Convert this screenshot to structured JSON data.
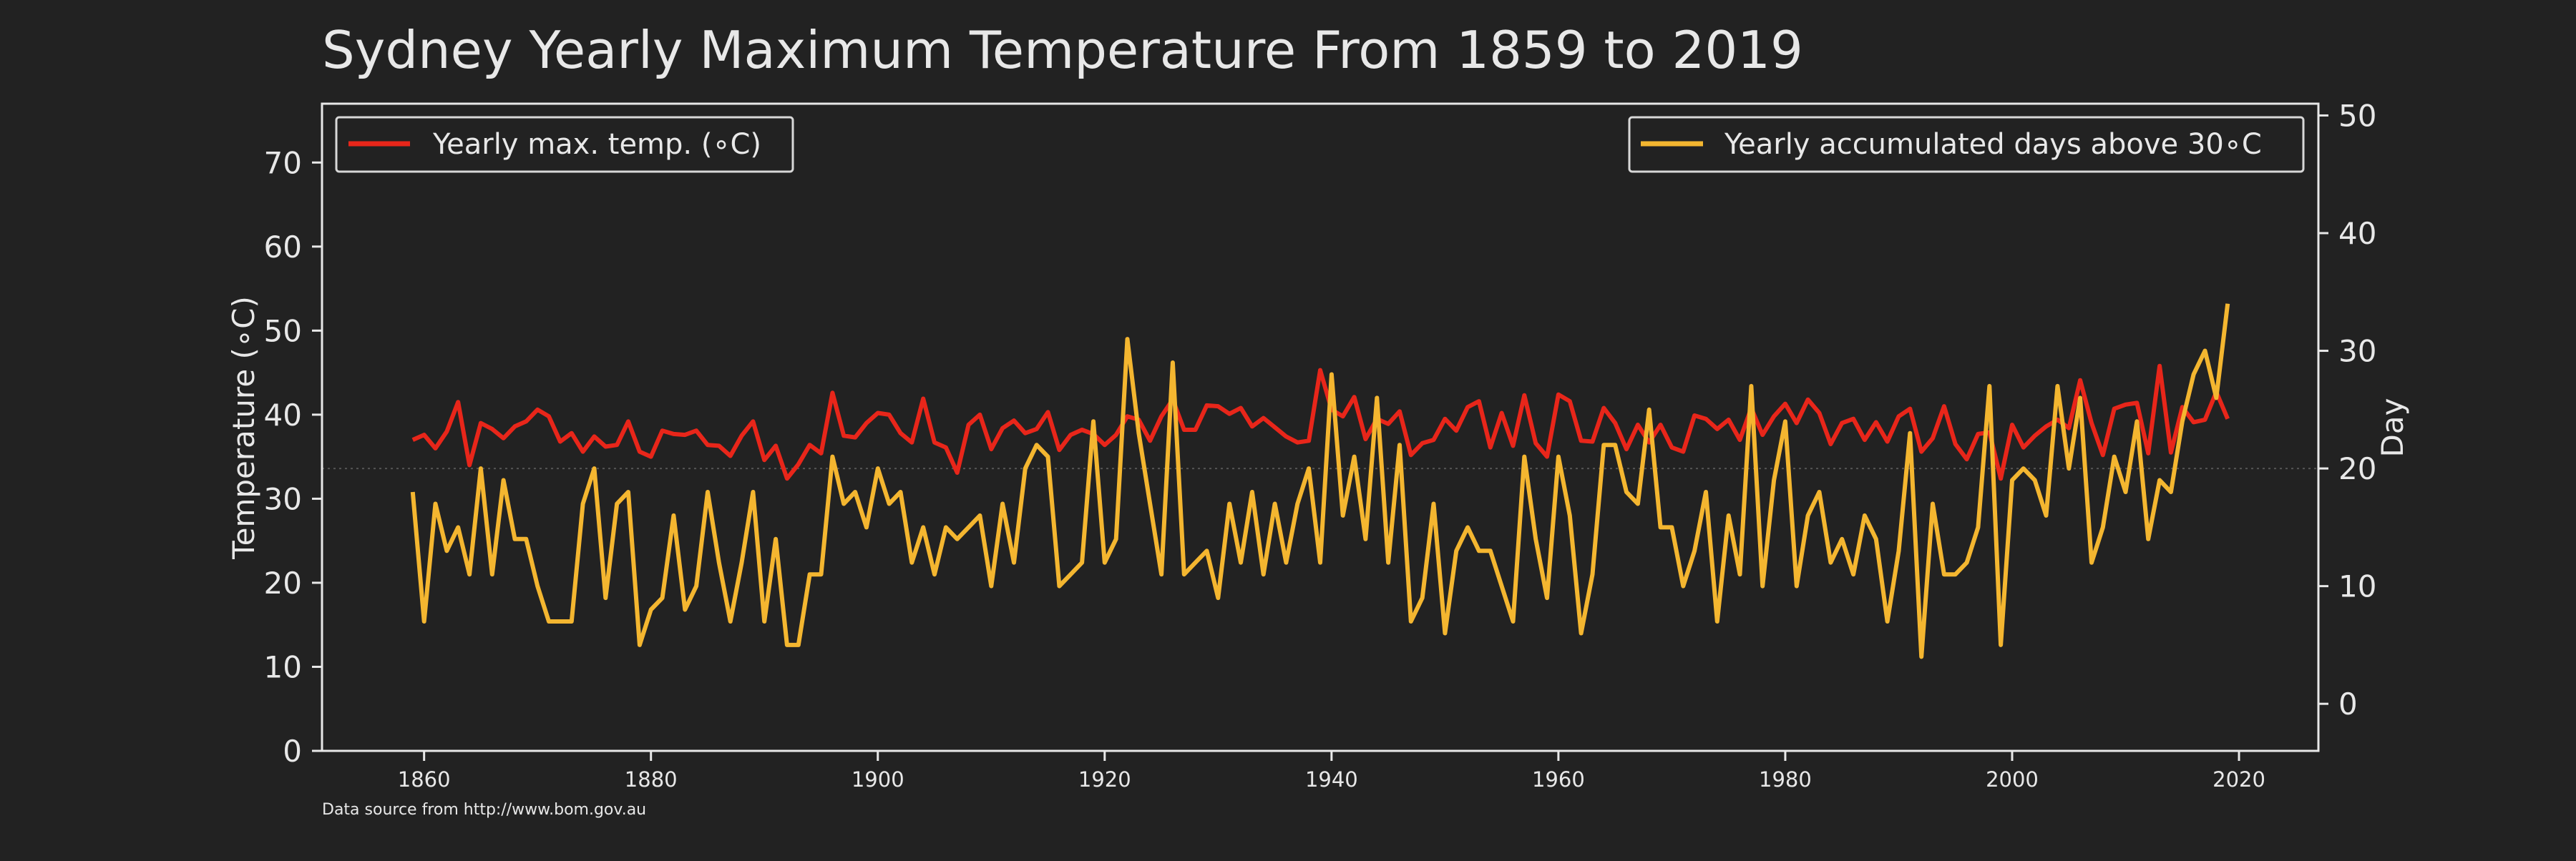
{
  "chart_data": {
    "type": "line",
    "title": "Sydney Yearly Maximum Temperature From 1859 to 2019",
    "xlabel": "",
    "ylabel_left": "Temperature (∘C)",
    "ylabel_right": "Day",
    "source_note": "Data source from http://www.bom.gov.au",
    "xlim": [
      1851,
      2027
    ],
    "ylim_left": [
      0,
      77
    ],
    "ylim_right": [
      -4,
      51
    ],
    "x_ticks": [
      1860,
      1880,
      1900,
      1920,
      1940,
      1960,
      1980,
      2000,
      2020
    ],
    "y_ticks_left": [
      0,
      10,
      20,
      30,
      40,
      50,
      60,
      70
    ],
    "y_ticks_right": [
      0,
      10,
      20,
      30,
      40,
      50
    ],
    "legend_left": "top-left",
    "legend_right": "top-right",
    "grid": false,
    "reference_line_right": 20,
    "colors": {
      "background": "#222222",
      "temperature": "#e8261a",
      "days": "#f4b630",
      "axis": "#e8e8e8",
      "reference": "#555555"
    },
    "series": [
      {
        "name": "Yearly max. temp. (∘C)",
        "axis": "left",
        "x": [
          1859,
          1860,
          1861,
          1862,
          1863,
          1864,
          1865,
          1866,
          1867,
          1868,
          1869,
          1870,
          1871,
          1872,
          1873,
          1874,
          1875,
          1876,
          1877,
          1878,
          1879,
          1880,
          1881,
          1882,
          1883,
          1884,
          1885,
          1886,
          1887,
          1888,
          1889,
          1890,
          1891,
          1892,
          1893,
          1894,
          1895,
          1896,
          1897,
          1898,
          1899,
          1900,
          1901,
          1902,
          1903,
          1904,
          1905,
          1906,
          1907,
          1908,
          1909,
          1910,
          1911,
          1912,
          1913,
          1914,
          1915,
          1916,
          1917,
          1918,
          1919,
          1920,
          1921,
          1922,
          1923,
          1924,
          1925,
          1926,
          1927,
          1928,
          1929,
          1930,
          1931,
          1932,
          1933,
          1934,
          1935,
          1936,
          1937,
          1938,
          1939,
          1940,
          1941,
          1942,
          1943,
          1944,
          1945,
          1946,
          1947,
          1948,
          1949,
          1950,
          1951,
          1952,
          1953,
          1954,
          1955,
          1956,
          1957,
          1958,
          1959,
          1960,
          1961,
          1962,
          1963,
          1964,
          1965,
          1966,
          1967,
          1968,
          1969,
          1970,
          1971,
          1972,
          1973,
          1974,
          1975,
          1976,
          1977,
          1978,
          1979,
          1980,
          1981,
          1982,
          1983,
          1984,
          1985,
          1986,
          1987,
          1988,
          1989,
          1990,
          1991,
          1992,
          1993,
          1994,
          1995,
          1996,
          1997,
          1998,
          1999,
          2000,
          2001,
          2002,
          2003,
          2004,
          2005,
          2006,
          2007,
          2008,
          2009,
          2010,
          2011,
          2012,
          2013,
          2014,
          2015,
          2016,
          2017,
          2018,
          2019
        ],
        "values": [
          37.0,
          37.6,
          36.0,
          38.0,
          41.5,
          34.0,
          39.0,
          38.3,
          37.2,
          38.6,
          39.2,
          40.6,
          39.8,
          36.8,
          37.8,
          35.6,
          37.4,
          36.2,
          36.4,
          39.2,
          35.6,
          35.0,
          38.1,
          37.7,
          37.6,
          38.1,
          36.4,
          36.3,
          35.1,
          37.5,
          39.2,
          34.6,
          36.3,
          32.4,
          34.1,
          36.4,
          35.4,
          42.6,
          37.5,
          37.3,
          39.0,
          40.2,
          40.0,
          37.8,
          36.7,
          41.9,
          36.7,
          36.1,
          33.1,
          38.8,
          40.0,
          35.9,
          38.4,
          39.3,
          37.8,
          38.3,
          40.3,
          35.8,
          37.6,
          38.2,
          37.7,
          36.4,
          37.6,
          39.8,
          39.4,
          36.9,
          39.8,
          41.8,
          38.2,
          38.2,
          41.1,
          41.0,
          40.1,
          40.8,
          38.6,
          39.6,
          38.5,
          37.4,
          36.7,
          36.9,
          45.3,
          40.6,
          39.8,
          42.1,
          37.1,
          39.5,
          38.9,
          40.4,
          35.2,
          36.6,
          37.0,
          39.5,
          38.1,
          40.9,
          41.6,
          36.1,
          40.2,
          36.3,
          42.3,
          36.6,
          35.0,
          42.4,
          41.6,
          36.9,
          36.8,
          40.8,
          39.0,
          35.9,
          38.8,
          36.7,
          38.8,
          36.1,
          35.6,
          39.9,
          39.5,
          38.3,
          39.4,
          37.0,
          40.8,
          37.6,
          39.8,
          41.3,
          39.0,
          41.8,
          40.2,
          36.5,
          39.0,
          39.5,
          37.0,
          39.1,
          36.8,
          39.8,
          40.7,
          35.6,
          37.2,
          41.0,
          36.5,
          34.7,
          37.7,
          37.9,
          32.4,
          38.8,
          36.1,
          37.5,
          38.6,
          39.4,
          38.4,
          44.1,
          39.0,
          35.2,
          40.7,
          41.2,
          41.4,
          35.4,
          45.8,
          35.5,
          40.9,
          39.1,
          39.4,
          42.7,
          39.5
        ]
      },
      {
        "name": "Yearly accumulated days above 30∘C",
        "axis": "right",
        "x": [
          1859,
          1860,
          1861,
          1862,
          1863,
          1864,
          1865,
          1866,
          1867,
          1868,
          1869,
          1870,
          1871,
          1872,
          1873,
          1874,
          1875,
          1876,
          1877,
          1878,
          1879,
          1880,
          1881,
          1882,
          1883,
          1884,
          1885,
          1886,
          1887,
          1888,
          1889,
          1890,
          1891,
          1892,
          1893,
          1894,
          1895,
          1896,
          1897,
          1898,
          1899,
          1900,
          1901,
          1902,
          1903,
          1904,
          1905,
          1906,
          1907,
          1908,
          1909,
          1910,
          1911,
          1912,
          1913,
          1914,
          1915,
          1916,
          1917,
          1918,
          1919,
          1920,
          1921,
          1922,
          1923,
          1924,
          1925,
          1926,
          1927,
          1928,
          1929,
          1930,
          1931,
          1932,
          1933,
          1934,
          1935,
          1936,
          1937,
          1938,
          1939,
          1940,
          1941,
          1942,
          1943,
          1944,
          1945,
          1946,
          1947,
          1948,
          1949,
          1950,
          1951,
          1952,
          1953,
          1954,
          1955,
          1956,
          1957,
          1958,
          1959,
          1960,
          1961,
          1962,
          1963,
          1964,
          1965,
          1966,
          1967,
          1968,
          1969,
          1970,
          1971,
          1972,
          1973,
          1974,
          1975,
          1976,
          1977,
          1978,
          1979,
          1980,
          1981,
          1982,
          1983,
          1984,
          1985,
          1986,
          1987,
          1988,
          1989,
          1990,
          1991,
          1992,
          1993,
          1994,
          1995,
          1996,
          1997,
          1998,
          1999,
          2000,
          2001,
          2002,
          2003,
          2004,
          2005,
          2006,
          2007,
          2008,
          2009,
          2010,
          2011,
          2012,
          2013,
          2014,
          2015,
          2016,
          2017,
          2018,
          2019
        ],
        "values": [
          18,
          7,
          17,
          13,
          15,
          11,
          20,
          11,
          19,
          14,
          14,
          10,
          7,
          7,
          7,
          17,
          20,
          9,
          17,
          18,
          5,
          8,
          9,
          16,
          8,
          10,
          18,
          12,
          7,
          12,
          18,
          7,
          14,
          5,
          5,
          11,
          11,
          21,
          17,
          18,
          15,
          20,
          17,
          18,
          12,
          15,
          11,
          15,
          14,
          15,
          16,
          10,
          17,
          12,
          20,
          22,
          21,
          10,
          11,
          12,
          24,
          12,
          14,
          31,
          23,
          17,
          11,
          29,
          11,
          12,
          13,
          9,
          17,
          12,
          18,
          11,
          17,
          12,
          17,
          20,
          12,
          28,
          16,
          21,
          14,
          26,
          12,
          22,
          7,
          9,
          17,
          6,
          13,
          15,
          13,
          13,
          10,
          7,
          21,
          14,
          9,
          21,
          16,
          6,
          11,
          22,
          22,
          18,
          17,
          25,
          15,
          15,
          10,
          13,
          18,
          7,
          16,
          11,
          27,
          10,
          19,
          24,
          10,
          16,
          18,
          12,
          14,
          11,
          16,
          14,
          7,
          13,
          23,
          4,
          17,
          11,
          11,
          12,
          15,
          27,
          5,
          19,
          20,
          19,
          16,
          27,
          20,
          26,
          12,
          15,
          21,
          18,
          24,
          14,
          19,
          18,
          24,
          28,
          30,
          26,
          34
        ]
      }
    ]
  }
}
